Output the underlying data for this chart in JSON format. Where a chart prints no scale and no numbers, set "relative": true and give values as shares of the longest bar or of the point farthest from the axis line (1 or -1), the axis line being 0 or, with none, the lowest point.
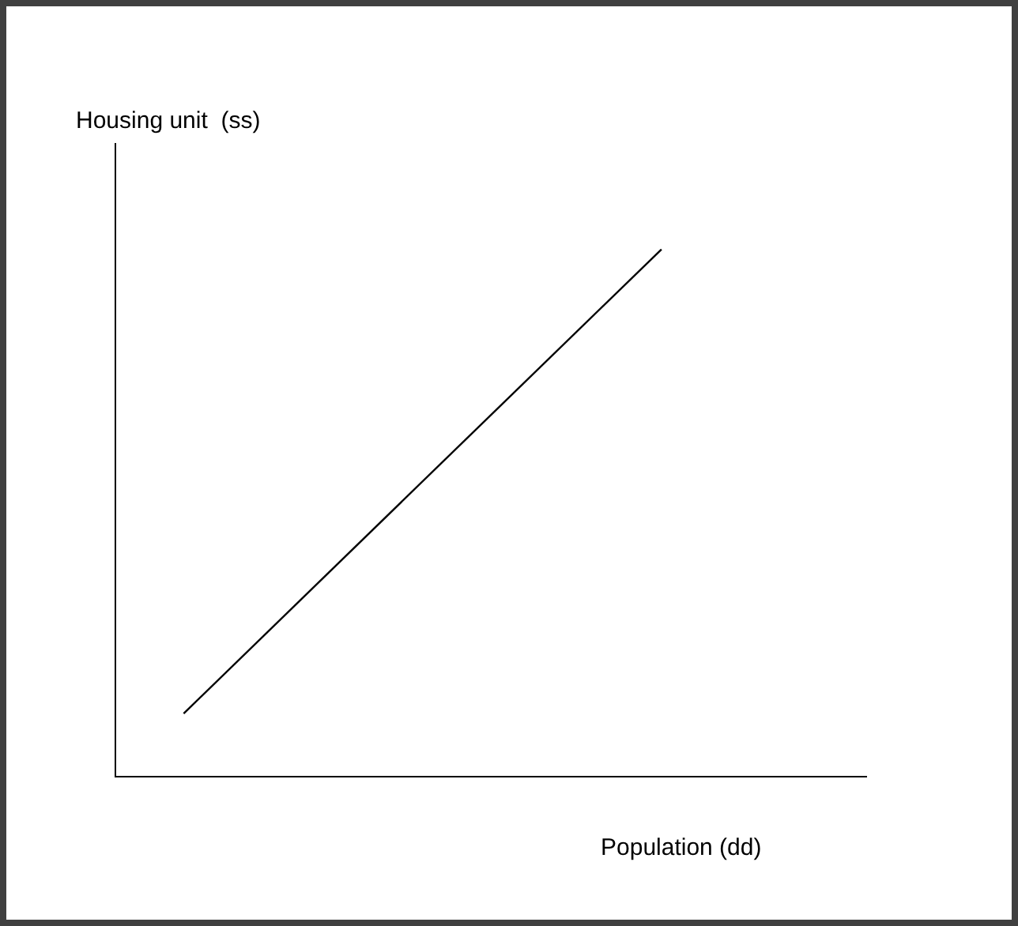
{
  "chart_data": {
    "type": "line",
    "relative": true,
    "xlabel": "Population (dd)",
    "ylabel": "Housing unit  (ss)",
    "categories": [
      null,
      null,
      null,
      null,
      null,
      null,
      null,
      null,
      null,
      null,
      null,
      null
    ],
    "series": [
      {
        "color": "#000000",
        "values": [
          null,
          0.12,
          null,
          null,
          null,
          null,
          null,
          null,
          1,
          null,
          null,
          null
        ]
      }
    ],
    "grid": false,
    "legend": false,
    "marker": "none",
    "line_style": "solid"
  }
}
